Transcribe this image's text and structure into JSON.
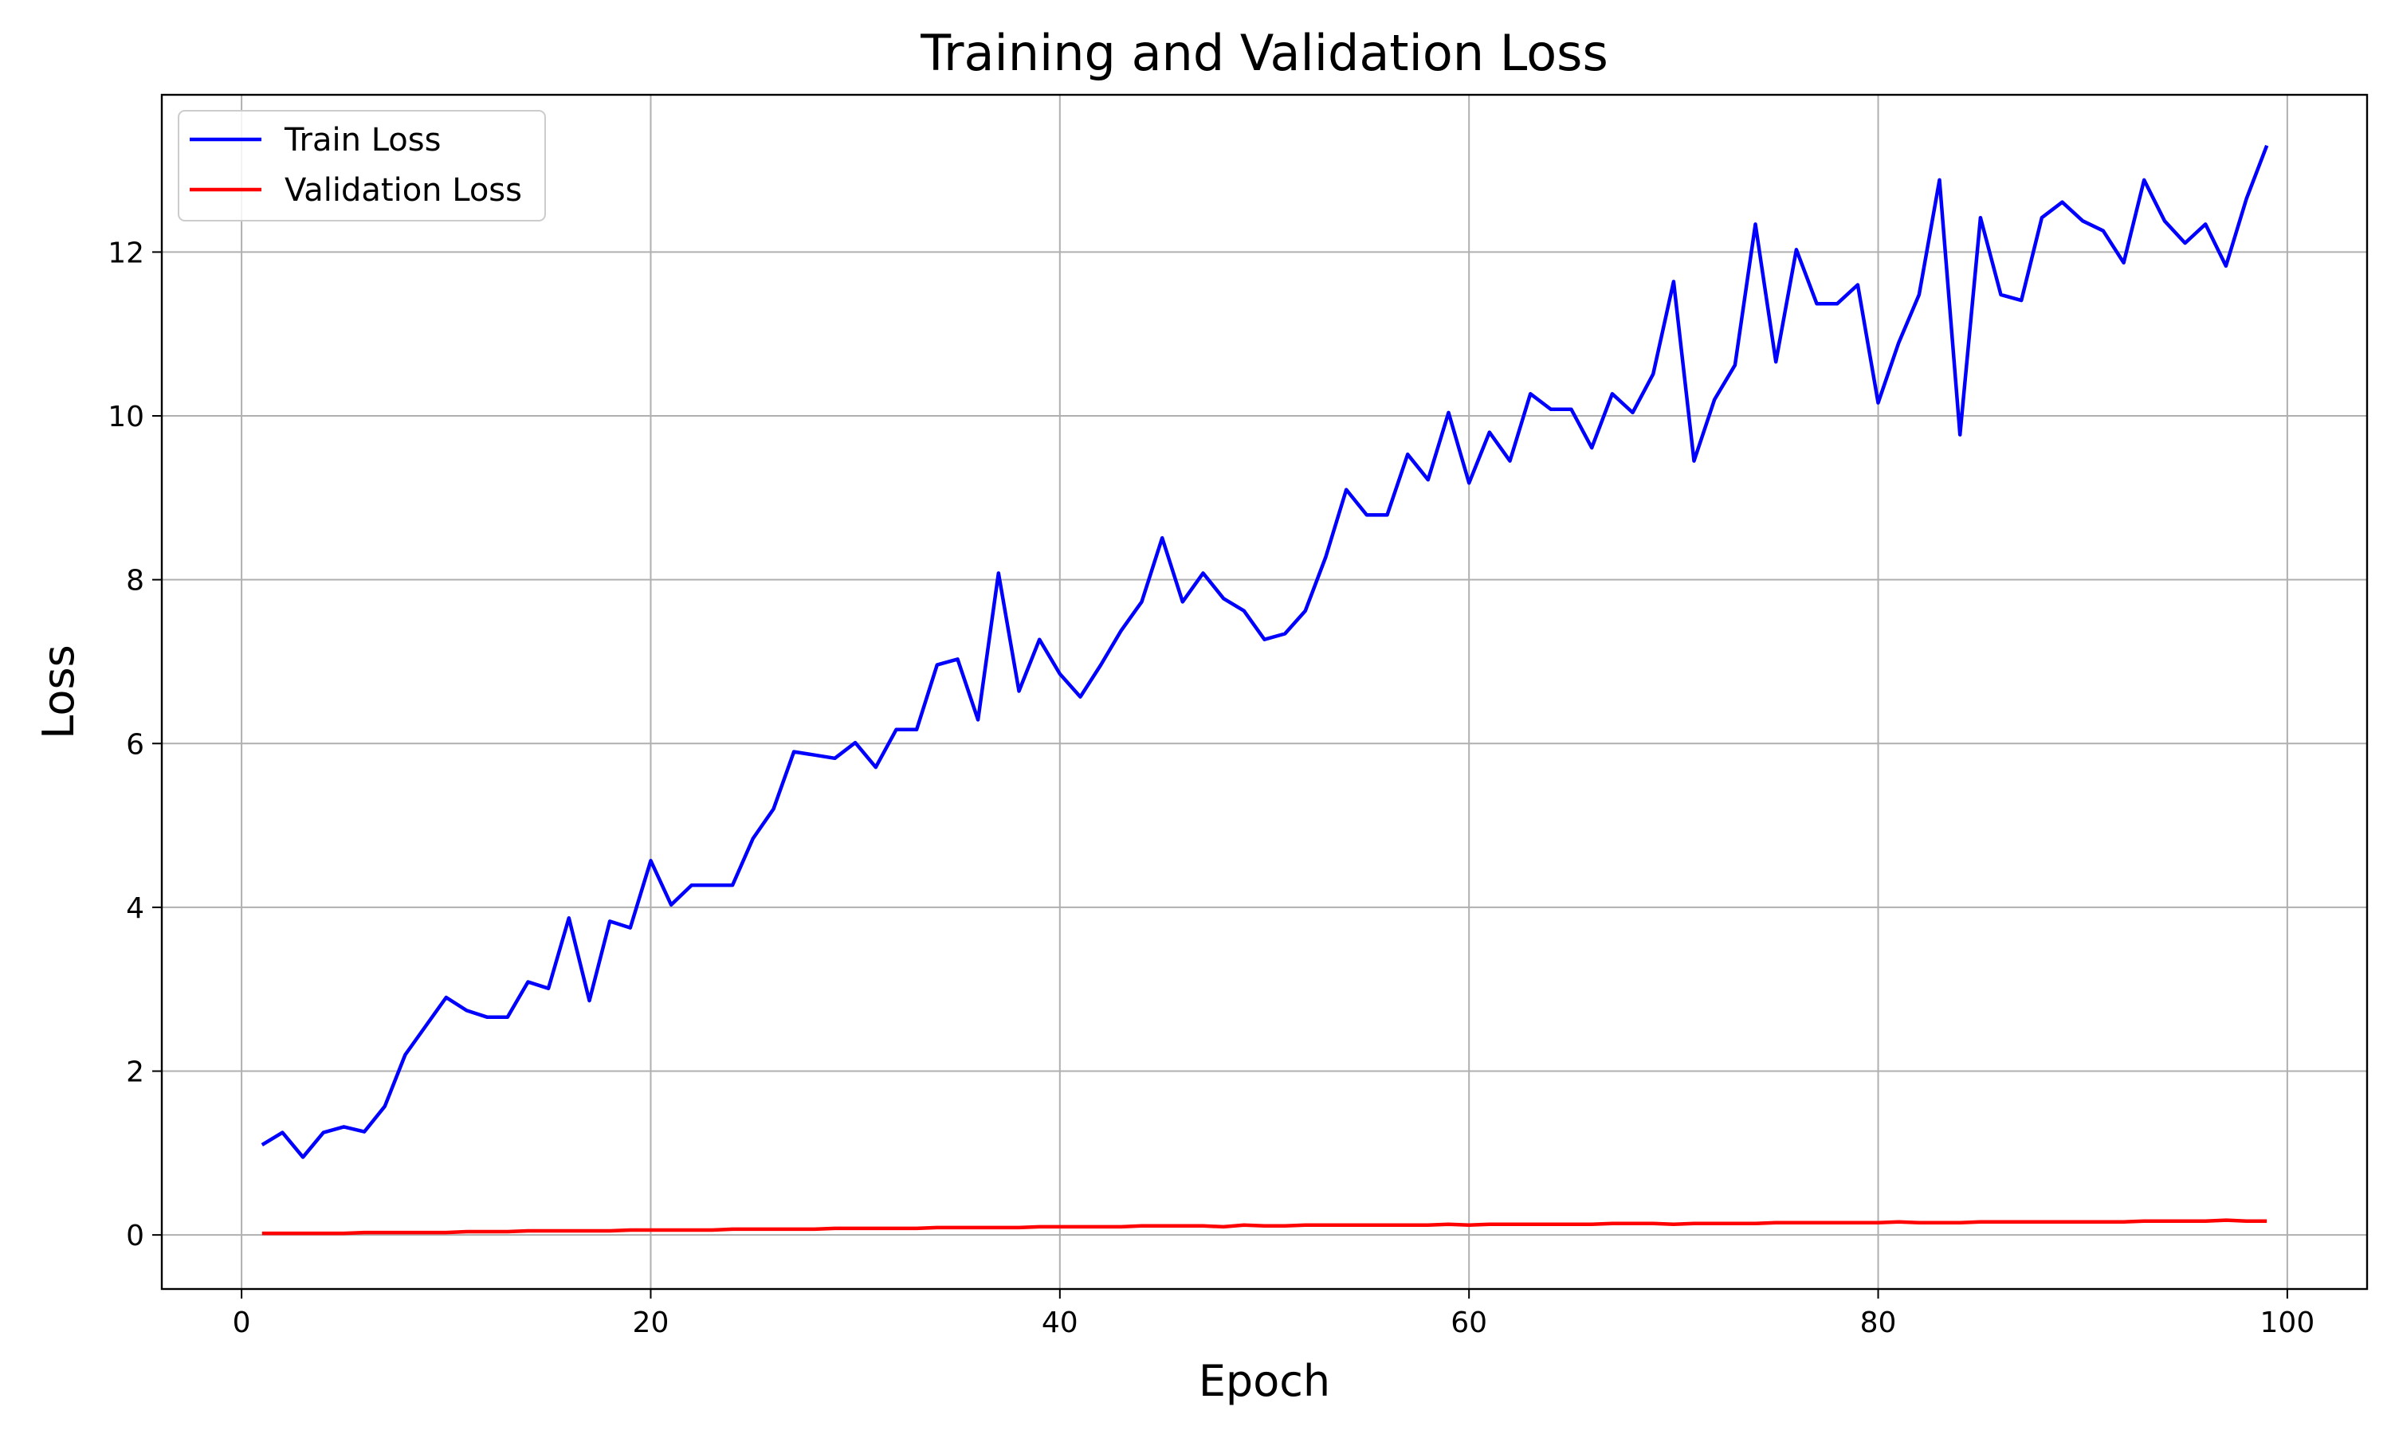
{
  "chart_data": {
    "type": "line",
    "title": "Training and Validation Loss",
    "xlabel": "Epoch",
    "ylabel": "Loss",
    "xlim": [
      -3.9,
      103.9
    ],
    "ylim": [
      -0.66,
      13.92
    ],
    "xticks": [
      0,
      20,
      40,
      60,
      80,
      100
    ],
    "yticks": [
      0,
      2,
      4,
      6,
      8,
      10,
      12
    ],
    "grid": true,
    "legend_position": "top-left",
    "x": [
      1,
      2,
      3,
      4,
      5,
      6,
      7,
      8,
      9,
      10,
      11,
      12,
      13,
      14,
      15,
      16,
      17,
      18,
      19,
      20,
      21,
      22,
      23,
      24,
      25,
      26,
      27,
      28,
      29,
      30,
      31,
      32,
      33,
      34,
      35,
      36,
      37,
      38,
      39,
      40,
      41,
      42,
      43,
      44,
      45,
      46,
      47,
      48,
      49,
      50,
      51,
      52,
      53,
      54,
      55,
      56,
      57,
      58,
      59,
      60,
      61,
      62,
      63,
      64,
      65,
      66,
      67,
      68,
      69,
      70,
      71,
      72,
      73,
      74,
      75,
      76,
      77,
      78,
      79,
      80,
      81,
      82,
      83,
      84,
      85,
      86,
      87,
      88,
      89,
      90,
      91,
      92,
      93,
      94,
      95,
      96,
      97,
      98,
      99
    ],
    "series": [
      {
        "name": "Train Loss",
        "color": "#0000ff",
        "values": [
          1.1,
          1.25,
          0.95,
          1.25,
          1.32,
          1.26,
          1.57,
          2.2,
          2.55,
          2.9,
          2.74,
          2.66,
          2.66,
          3.09,
          3.01,
          3.87,
          2.86,
          3.83,
          3.75,
          4.57,
          4.03,
          4.27,
          4.27,
          4.27,
          4.84,
          5.2,
          5.9,
          5.86,
          5.82,
          6.01,
          5.71,
          6.17,
          6.17,
          6.96,
          7.03,
          6.29,
          8.08,
          6.64,
          7.27,
          6.85,
          6.57,
          6.96,
          7.38,
          7.73,
          8.51,
          7.73,
          8.08,
          7.77,
          7.62,
          7.27,
          7.34,
          7.62,
          8.28,
          9.1,
          8.79,
          8.79,
          9.53,
          9.22,
          10.04,
          9.18,
          9.8,
          9.45,
          10.27,
          10.08,
          10.08,
          9.61,
          10.27,
          10.04,
          10.51,
          11.64,
          9.45,
          10.2,
          10.62,
          12.34,
          10.66,
          12.03,
          11.37,
          11.37,
          11.6,
          10.16,
          10.89,
          11.48,
          12.88,
          9.77,
          12.42,
          11.48,
          11.41,
          12.42,
          12.61,
          12.38,
          12.26,
          11.87,
          12.88,
          12.38,
          12.11,
          12.34,
          11.83,
          12.65,
          13.3
        ]
      },
      {
        "name": "Validation Loss",
        "color": "#ff0000",
        "values": [
          0.02,
          0.02,
          0.02,
          0.02,
          0.02,
          0.03,
          0.03,
          0.03,
          0.03,
          0.03,
          0.04,
          0.04,
          0.04,
          0.05,
          0.05,
          0.05,
          0.05,
          0.05,
          0.06,
          0.06,
          0.06,
          0.06,
          0.06,
          0.07,
          0.07,
          0.07,
          0.07,
          0.07,
          0.08,
          0.08,
          0.08,
          0.08,
          0.08,
          0.09,
          0.09,
          0.09,
          0.09,
          0.09,
          0.1,
          0.1,
          0.1,
          0.1,
          0.1,
          0.11,
          0.11,
          0.11,
          0.11,
          0.1,
          0.12,
          0.11,
          0.11,
          0.12,
          0.12,
          0.12,
          0.12,
          0.12,
          0.12,
          0.12,
          0.13,
          0.12,
          0.13,
          0.13,
          0.13,
          0.13,
          0.13,
          0.13,
          0.14,
          0.14,
          0.14,
          0.13,
          0.14,
          0.14,
          0.14,
          0.14,
          0.15,
          0.15,
          0.15,
          0.15,
          0.15,
          0.15,
          0.16,
          0.15,
          0.15,
          0.15,
          0.16,
          0.16,
          0.16,
          0.16,
          0.16,
          0.16,
          0.16,
          0.16,
          0.17,
          0.17,
          0.17,
          0.17,
          0.18,
          0.17,
          0.17
        ]
      }
    ]
  }
}
